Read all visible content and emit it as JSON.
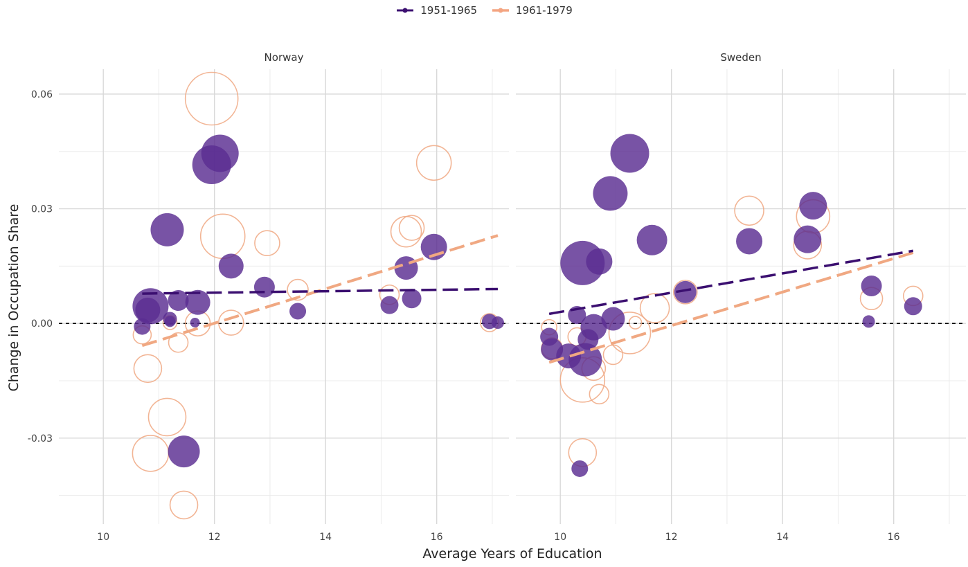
{
  "chart_data": {
    "type": "scatter",
    "title": "",
    "xlabel": "Average Years of Education",
    "ylabel": "Change in Occupation Share",
    "xlim": [
      9.2,
      17.3
    ],
    "ylim": [
      -0.0525,
      0.0665
    ],
    "xticks": [
      10,
      12,
      14,
      16
    ],
    "yticks": [
      -0.03,
      0.0,
      0.03,
      0.06
    ],
    "ytick_labels": [
      "-0.03",
      "0.00",
      "0.03",
      "0.06"
    ],
    "reference_line_y": 0.0,
    "legend": {
      "position": "top",
      "entries": [
        {
          "name": "1951-1965",
          "color": "#3b0f70"
        },
        {
          "name": "1961-1979",
          "color": "#f4a582"
        }
      ]
    },
    "colors": {
      "series1": "#3b0f70",
      "series1_fill": "#5a2d91",
      "series2": "#f0a882",
      "grid": "#d9d9d9",
      "zero_line": "#000000"
    },
    "panels": [
      {
        "name": "Norway",
        "series": [
          {
            "name": "1951-1965",
            "trend": {
              "x": [
                10.7,
                17.1
              ],
              "y": [
                0.0078,
                0.009
              ]
            },
            "points": [
              {
                "x": 10.7,
                "y": -0.0008,
                "size": 1.2
              },
              {
                "x": 10.8,
                "y": 0.0035,
                "size": 1.8
              },
              {
                "x": 10.85,
                "y": 0.0045,
                "size": 2.6
              },
              {
                "x": 11.15,
                "y": 0.0245,
                "size": 2.4
              },
              {
                "x": 11.2,
                "y": 0.0012,
                "size": 1.0
              },
              {
                "x": 11.2,
                "y": 0.0005,
                "size": 0.8
              },
              {
                "x": 11.35,
                "y": 0.006,
                "size": 1.5
              },
              {
                "x": 11.45,
                "y": -0.0335,
                "size": 2.3
              },
              {
                "x": 11.65,
                "y": 0.0002,
                "size": 0.7
              },
              {
                "x": 11.7,
                "y": 0.0055,
                "size": 1.8
              },
              {
                "x": 11.95,
                "y": 0.0415,
                "size": 2.8
              },
              {
                "x": 12.1,
                "y": 0.0445,
                "size": 2.7
              },
              {
                "x": 12.3,
                "y": 0.015,
                "size": 1.8
              },
              {
                "x": 12.9,
                "y": 0.0095,
                "size": 1.5
              },
              {
                "x": 13.5,
                "y": 0.0032,
                "size": 1.2
              },
              {
                "x": 15.15,
                "y": 0.0048,
                "size": 1.3
              },
              {
                "x": 15.45,
                "y": 0.0145,
                "size": 1.7
              },
              {
                "x": 15.55,
                "y": 0.0065,
                "size": 1.4
              },
              {
                "x": 15.95,
                "y": 0.02,
                "size": 1.9
              },
              {
                "x": 16.95,
                "y": 0.0005,
                "size": 1.1
              },
              {
                "x": 17.1,
                "y": 0.0002,
                "size": 0.9
              }
            ]
          },
          {
            "name": "1961-1979",
            "trend": {
              "x": [
                10.7,
                17.1
              ],
              "y": [
                -0.0058,
                0.023
              ]
            },
            "points": [
              {
                "x": 10.7,
                "y": -0.003,
                "size": 1.3
              },
              {
                "x": 10.8,
                "y": -0.0118,
                "size": 2.0
              },
              {
                "x": 10.85,
                "y": -0.034,
                "size": 2.6
              },
              {
                "x": 11.15,
                "y": -0.0245,
                "size": 2.7
              },
              {
                "x": 11.2,
                "y": 0.0002,
                "size": 1.0
              },
              {
                "x": 11.35,
                "y": -0.005,
                "size": 1.4
              },
              {
                "x": 11.45,
                "y": -0.0475,
                "size": 2.0
              },
              {
                "x": 11.7,
                "y": 0.0,
                "size": 1.8
              },
              {
                "x": 11.95,
                "y": 0.0588,
                "size": 3.8
              },
              {
                "x": 12.15,
                "y": 0.0228,
                "size": 3.2
              },
              {
                "x": 12.3,
                "y": 0.0002,
                "size": 1.8
              },
              {
                "x": 12.95,
                "y": 0.021,
                "size": 1.8
              },
              {
                "x": 13.5,
                "y": 0.0088,
                "size": 1.5
              },
              {
                "x": 15.15,
                "y": 0.0075,
                "size": 1.4
              },
              {
                "x": 15.45,
                "y": 0.024,
                "size": 2.2
              },
              {
                "x": 15.55,
                "y": 0.025,
                "size": 1.8
              },
              {
                "x": 15.95,
                "y": 0.042,
                "size": 2.5
              },
              {
                "x": 16.95,
                "y": 0.0002,
                "size": 1.3
              }
            ]
          }
        ]
      },
      {
        "name": "Sweden",
        "series": [
          {
            "name": "1951-1965",
            "trend": {
              "x": [
                9.8,
                16.35
              ],
              "y": [
                0.0025,
                0.019
              ]
            },
            "points": [
              {
                "x": 9.8,
                "y": -0.0035,
                "size": 1.3
              },
              {
                "x": 9.85,
                "y": -0.0068,
                "size": 1.6
              },
              {
                "x": 10.15,
                "y": -0.0085,
                "size": 1.8
              },
              {
                "x": 10.3,
                "y": 0.0022,
                "size": 1.3
              },
              {
                "x": 10.35,
                "y": -0.038,
                "size": 1.2
              },
              {
                "x": 10.4,
                "y": 0.0158,
                "size": 3.2
              },
              {
                "x": 10.45,
                "y": -0.0095,
                "size": 2.4
              },
              {
                "x": 10.5,
                "y": -0.0042,
                "size": 1.5
              },
              {
                "x": 10.6,
                "y": -0.001,
                "size": 1.9
              },
              {
                "x": 10.7,
                "y": 0.0162,
                "size": 1.9
              },
              {
                "x": 10.9,
                "y": 0.034,
                "size": 2.5
              },
              {
                "x": 10.95,
                "y": 0.0012,
                "size": 1.7
              },
              {
                "x": 11.25,
                "y": 0.0445,
                "size": 2.8
              },
              {
                "x": 11.65,
                "y": 0.0218,
                "size": 2.2
              },
              {
                "x": 12.25,
                "y": 0.0082,
                "size": 1.6
              },
              {
                "x": 13.4,
                "y": 0.0215,
                "size": 1.9
              },
              {
                "x": 14.45,
                "y": 0.022,
                "size": 2.0
              },
              {
                "x": 14.55,
                "y": 0.0308,
                "size": 2.0
              },
              {
                "x": 15.55,
                "y": 0.0005,
                "size": 0.9
              },
              {
                "x": 15.6,
                "y": 0.0098,
                "size": 1.5
              },
              {
                "x": 16.35,
                "y": 0.0045,
                "size": 1.3
              }
            ]
          },
          {
            "name": "1961-1979",
            "trend": {
              "x": [
                9.8,
                16.35
              ],
              "y": [
                -0.0102,
                0.0185
              ]
            },
            "points": [
              {
                "x": 9.8,
                "y": -0.001,
                "size": 1.1
              },
              {
                "x": 9.85,
                "y": -0.0065,
                "size": 1.5
              },
              {
                "x": 10.3,
                "y": -0.0035,
                "size": 1.3
              },
              {
                "x": 10.4,
                "y": -0.0148,
                "size": 3.2
              },
              {
                "x": 10.4,
                "y": -0.0338,
                "size": 2.0
              },
              {
                "x": 10.6,
                "y": -0.0118,
                "size": 1.7
              },
              {
                "x": 10.7,
                "y": -0.0185,
                "size": 1.4
              },
              {
                "x": 10.95,
                "y": -0.0082,
                "size": 1.4
              },
              {
                "x": 11.25,
                "y": -0.0025,
                "size": 3.0
              },
              {
                "x": 11.35,
                "y": 0.0002,
                "size": 0.9
              },
              {
                "x": 11.7,
                "y": 0.004,
                "size": 2.1
              },
              {
                "x": 12.25,
                "y": 0.0082,
                "size": 1.7
              },
              {
                "x": 13.4,
                "y": 0.0295,
                "size": 2.1
              },
              {
                "x": 14.45,
                "y": 0.0205,
                "size": 2.0
              },
              {
                "x": 14.55,
                "y": 0.028,
                "size": 2.4
              },
              {
                "x": 15.6,
                "y": 0.0065,
                "size": 1.6
              },
              {
                "x": 16.35,
                "y": 0.0072,
                "size": 1.4
              }
            ]
          }
        ]
      }
    ]
  }
}
